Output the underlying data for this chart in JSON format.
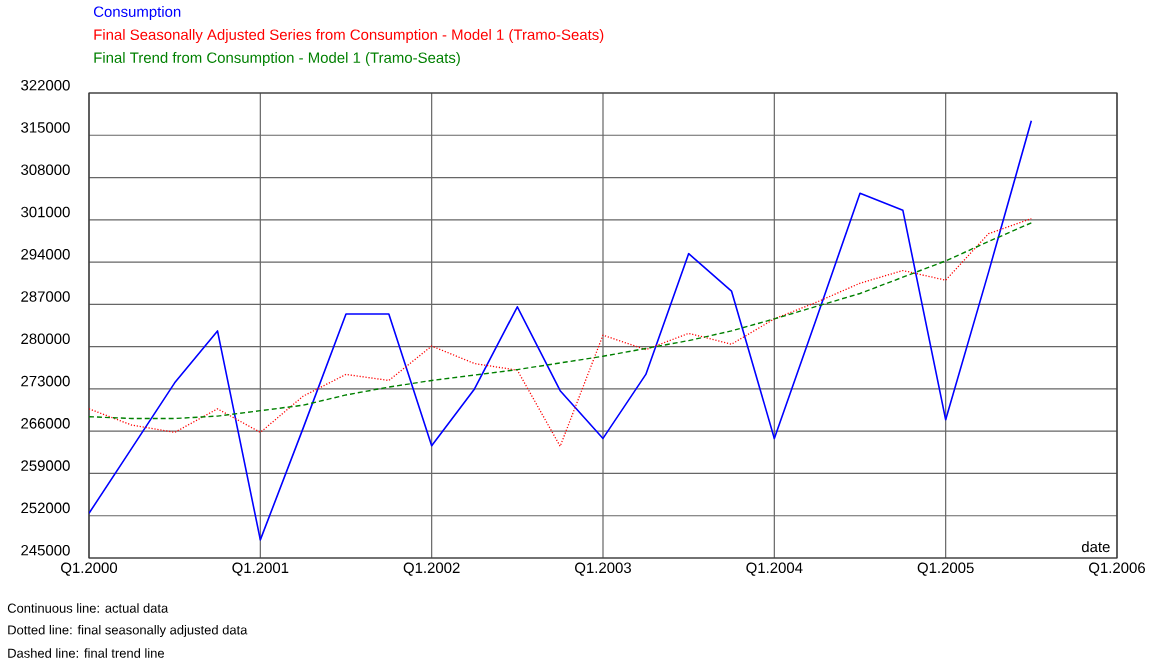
{
  "chart_data": {
    "type": "line",
    "xlabel": "date",
    "categories": [
      "Q1.2000",
      null,
      null,
      null,
      "Q1.2001",
      null,
      null,
      null,
      "Q1.2002",
      null,
      null,
      null,
      "Q1.2003",
      null,
      null,
      null,
      "Q1.2004",
      null,
      null,
      null,
      "Q1.2005",
      null,
      null,
      null,
      "Q1.2006"
    ],
    "series": [
      {
        "name": "Consumption",
        "color": "#0000ff",
        "line_style": "solid",
        "values": [
          252400,
          263200,
          274000,
          282600,
          248000,
          266500,
          285400,
          285400,
          263600,
          273000,
          286600,
          272700,
          264800,
          275400,
          295400,
          289200,
          264800,
          285000,
          305400,
          302600,
          267900,
          292300,
          317400,
          null,
          null
        ]
      },
      {
        "name": "Final Seasonally Adjusted Series from Consumption - Model 1 (Tramo-Seats)",
        "color": "#ff0000",
        "line_style": "dotted",
        "values": [
          269700,
          267000,
          265800,
          269700,
          265800,
          271800,
          275400,
          274400,
          280100,
          277200,
          276100,
          263500,
          281900,
          279500,
          282200,
          280400,
          284600,
          287400,
          290500,
          292600,
          291000,
          298700,
          301200,
          null,
          null
        ]
      },
      {
        "name": "Final Trend from Consumption - Model 1 (Tramo-Seats)",
        "color": "#008000",
        "line_style": "dashed",
        "values": [
          268400,
          268100,
          268100,
          268500,
          269400,
          270300,
          272000,
          273300,
          274400,
          275300,
          276200,
          277300,
          278400,
          279700,
          281000,
          282600,
          284600,
          286700,
          288800,
          291500,
          294200,
          297400,
          300500,
          null,
          null
        ]
      }
    ],
    "ylim": [
      245000,
      322000
    ],
    "yticks": [
      245000,
      252000,
      259000,
      266000,
      273000,
      280000,
      287000,
      294000,
      301000,
      308000,
      315000,
      322000
    ],
    "grid": true,
    "legend": "top left",
    "annotations": [
      "Continuous line: actual data",
      "Dotted line:  final seasonally adjusted data",
      "Dashed line: final trend line"
    ]
  }
}
